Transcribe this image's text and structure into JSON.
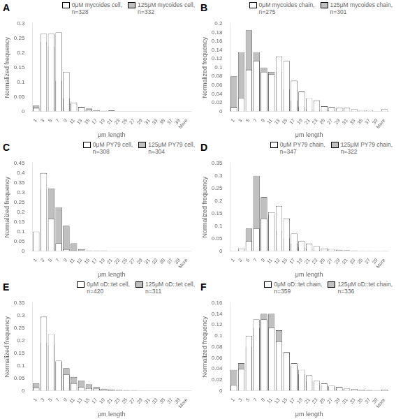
{
  "chart_data": [
    {
      "type": "bar",
      "title": "A",
      "categories": [
        "1",
        "3",
        "5",
        "7",
        "9",
        "11",
        "13",
        "15",
        "17",
        "19",
        "21",
        "23",
        "25",
        "27",
        "29",
        "31",
        "33",
        "35",
        "37",
        "39",
        "More"
      ],
      "series": [
        {
          "name": "125μM mycoides cell,\nn=332",
          "color": "#c0c0c0",
          "values": [
            0.02,
            0.235,
            0.22,
            0.105,
            0.045,
            0.025,
            0.015,
            0.01,
            0.004,
            0.002,
            0.0,
            0.0,
            0.0,
            0.0,
            0.0,
            0.0,
            0.0,
            0.0,
            0.0,
            0.0,
            0.0
          ]
        },
        {
          "name": "0μM mycoides cell,\nn=328",
          "color": "#ffffff",
          "values": [
            0.012,
            0.265,
            0.265,
            0.27,
            0.135,
            0.03,
            0.015,
            0.005,
            0.001,
            0.0,
            0.003,
            0.0,
            0.0,
            0.0,
            0.0,
            0.0,
            0.0,
            0.0,
            0.0,
            0.0,
            0.0
          ]
        }
      ],
      "x_label": "μm length",
      "y_label": "Normalized frequency",
      "ylim": [
        0,
        0.3
      ],
      "yticks": [
        0,
        0.05,
        0.1,
        0.15,
        0.2,
        0.25,
        0.3
      ],
      "grid": false,
      "legend": "upper right"
    },
    {
      "type": "bar",
      "title": "B",
      "categories": [
        "1",
        "3",
        "5",
        "7",
        "9",
        "11",
        "13",
        "15",
        "17",
        "19",
        "21",
        "23",
        "25",
        "27",
        "29",
        "31",
        "33",
        "35",
        "37",
        "39",
        "More"
      ],
      "series": [
        {
          "name": "125μM mycoides chain,\nn=301",
          "color": "#c0c0c0",
          "values": [
            0.08,
            0.135,
            0.185,
            0.135,
            0.1,
            0.09,
            0.09,
            0.05,
            0.025,
            0.01,
            0.005,
            0.002,
            0.002,
            0.002,
            0.001,
            0.0,
            0.0,
            0.0,
            0.0,
            0.0,
            0.0
          ]
        },
        {
          "name": "0μM mycoides chain,\nn=275",
          "color": "#ffffff",
          "values": [
            0.01,
            0.03,
            0.095,
            0.115,
            0.09,
            0.085,
            0.125,
            0.115,
            0.07,
            0.045,
            0.03,
            0.025,
            0.012,
            0.01,
            0.008,
            0.008,
            0.005,
            0.003,
            0.003,
            0.0,
            0.005
          ]
        }
      ],
      "x_label": "μm length",
      "y_label": "Normalized frequency",
      "ylim": [
        0,
        0.2
      ],
      "yticks": [
        0,
        0.02,
        0.04,
        0.06,
        0.08,
        0.1,
        0.12,
        0.14,
        0.16,
        0.18,
        0.2
      ],
      "grid": false,
      "legend": "upper right"
    },
    {
      "type": "bar",
      "title": "C",
      "categories": [
        "1",
        "3",
        "5",
        "7",
        "9",
        "11",
        "13",
        "15",
        "17",
        "19",
        "21",
        "23",
        "25",
        "27",
        "29",
        "31",
        "33",
        "35",
        "37",
        "39",
        "More"
      ],
      "series": [
        {
          "name": "125μM PY79 cell,\nn=304",
          "color": "#c0c0c0",
          "values": [
            0.005,
            0.315,
            0.32,
            0.225,
            0.13,
            0.04,
            0.01,
            0.003,
            0.0,
            0.003,
            0.0,
            0.0,
            0.0,
            0.0,
            0.0,
            0.0,
            0.0,
            0.0,
            0.0,
            0.0,
            0.0
          ]
        },
        {
          "name": "0μM PY79 cell,\nn=308",
          "color": "#ffffff",
          "values": [
            0.1,
            0.4,
            0.165,
            0.04,
            0.01,
            0.003,
            0.0,
            0.0,
            0.003,
            0.0,
            0.0,
            0.0,
            0.0,
            0.0,
            0.0,
            0.0,
            0.0,
            0.0,
            0.0,
            0.0,
            0.0
          ]
        }
      ],
      "x_label": "μm length",
      "y_label": "Normalized frequency",
      "ylim": [
        0,
        0.45
      ],
      "yticks": [
        0,
        0.05,
        0.1,
        0.15,
        0.2,
        0.25,
        0.3,
        0.35,
        0.4,
        0.45
      ],
      "grid": false,
      "legend": "upper right"
    },
    {
      "type": "bar",
      "title": "D",
      "categories": [
        "1",
        "3",
        "5",
        "7",
        "9",
        "11",
        "13",
        "15",
        "17",
        "19",
        "21",
        "23",
        "25",
        "27",
        "29",
        "31",
        "33",
        "35",
        "37",
        "39",
        "More"
      ],
      "series": [
        {
          "name": "125μM PY79 chain,\nn=322",
          "color": "#c0c0c0",
          "values": [
            0.0,
            0.005,
            0.09,
            0.3,
            0.215,
            0.145,
            0.08,
            0.05,
            0.03,
            0.015,
            0.01,
            0.005,
            0.003,
            0.002,
            0.001,
            0.0,
            0.0,
            0.0,
            0.0,
            0.0,
            0.0
          ]
        },
        {
          "name": "0μM PY79 chain,\nn=347",
          "color": "#ffffff",
          "values": [
            0.0,
            0.01,
            0.04,
            0.09,
            0.13,
            0.155,
            0.18,
            0.13,
            0.07,
            0.04,
            0.03,
            0.02,
            0.01,
            0.008,
            0.005,
            0.003,
            0.002,
            0.001,
            0.001,
            0.001,
            0.001
          ]
        }
      ],
      "x_label": "μm length",
      "y_label": "Normalized frequency",
      "ylim": [
        0,
        0.35
      ],
      "yticks": [
        0,
        0.05,
        0.1,
        0.15,
        0.2,
        0.25,
        0.3,
        0.35
      ],
      "grid": false,
      "legend": "upper right"
    },
    {
      "type": "bar",
      "title": "E",
      "categories": [
        "1",
        "3",
        "5",
        "7",
        "9",
        "11",
        "13",
        "15",
        "17",
        "19",
        "21",
        "23",
        "25",
        "27",
        "29",
        "31",
        "33",
        "35",
        "37",
        "39",
        "More"
      ],
      "series": [
        {
          "name": "125μM oD::tet cell,\nn=311",
          "color": "#c0c0c0",
          "values": [
            0.03,
            0.19,
            0.18,
            0.115,
            0.09,
            0.055,
            0.04,
            0.025,
            0.015,
            0.008,
            0.005,
            0.003,
            0.002,
            0.002,
            0.001,
            0.0,
            0.0,
            0.0,
            0.0,
            0.0,
            0.0
          ]
        },
        {
          "name": "0μM oD::tet cell,\nn=420",
          "color": "#ffffff",
          "values": [
            0.012,
            0.295,
            0.225,
            0.12,
            0.065,
            0.03,
            0.015,
            0.01,
            0.008,
            0.005,
            0.002,
            0.001,
            0.001,
            0.0,
            0.0,
            0.0,
            0.0,
            0.0,
            0.0,
            0.0,
            0.0
          ]
        }
      ],
      "x_label": "μm length",
      "y_label": "Normalized frequency",
      "ylim": [
        0,
        0.35
      ],
      "yticks": [
        0,
        0.05,
        0.1,
        0.15,
        0.2,
        0.25,
        0.3,
        0.35
      ],
      "grid": false,
      "legend": "upper right"
    },
    {
      "type": "bar",
      "title": "F",
      "categories": [
        "1",
        "3",
        "5",
        "7",
        "9",
        "11",
        "13",
        "15",
        "17",
        "19",
        "21",
        "23",
        "25",
        "27",
        "29",
        "31",
        "33",
        "35",
        "37",
        "39",
        "More"
      ],
      "series": [
        {
          "name": "125μM oD::tet chain,\nn=336",
          "color": "#c0c0c0",
          "values": [
            0.038,
            0.05,
            0.08,
            0.115,
            0.14,
            0.14,
            0.11,
            0.07,
            0.045,
            0.03,
            0.018,
            0.013,
            0.009,
            0.007,
            0.004,
            0.003,
            0.002,
            0.001,
            0.001,
            0.0,
            0.001
          ]
        },
        {
          "name": "0μM oD::tet chain,\nn=359",
          "color": "#ffffff",
          "values": [
            0.01,
            0.04,
            0.1,
            0.13,
            0.13,
            0.115,
            0.09,
            0.07,
            0.05,
            0.038,
            0.028,
            0.018,
            0.013,
            0.009,
            0.007,
            0.004,
            0.003,
            0.002,
            0.001,
            0.001,
            0.002
          ]
        }
      ],
      "x_label": "μm length",
      "y_label": "Normalized frequency",
      "ylim": [
        0,
        0.16
      ],
      "yticks": [
        0,
        0.02,
        0.04,
        0.06,
        0.08,
        0.1,
        0.12,
        0.14,
        0.16
      ],
      "grid": false,
      "legend": "upper right"
    }
  ]
}
